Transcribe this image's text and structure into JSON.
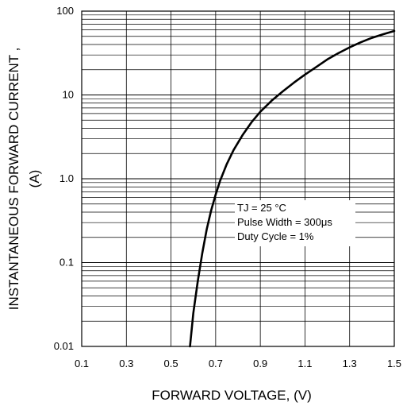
{
  "chart_data": {
    "type": "line",
    "title": "",
    "xlabel": "FORWARD VOLTAGE, (V)",
    "ylabel_lines": [
      "INSTANTANEOUS FORWARD CURRENT ,",
      "(A)"
    ],
    "xlim": [
      0.1,
      1.5
    ],
    "ylim": [
      0.01,
      100
    ],
    "y_scale": "log",
    "grid": true,
    "x_ticks": [
      {
        "value": 0.1,
        "label": "0.1"
      },
      {
        "value": 0.3,
        "label": "0.3"
      },
      {
        "value": 0.5,
        "label": "0.5"
      },
      {
        "value": 0.7,
        "label": "0.7"
      },
      {
        "value": 0.9,
        "label": "0.9"
      },
      {
        "value": 1.1,
        "label": "1.1"
      },
      {
        "value": 1.3,
        "label": "1.3"
      },
      {
        "value": 1.5,
        "label": "1.5"
      }
    ],
    "y_ticks": [
      {
        "value": 0.01,
        "label": "0.01"
      },
      {
        "value": 0.1,
        "label": "0.1"
      },
      {
        "value": 1,
        "label": "1.0"
      },
      {
        "value": 10,
        "label": "10"
      },
      {
        "value": 100,
        "label": "100"
      }
    ],
    "series": [
      {
        "x": [
          0.585,
          0.6,
          0.62,
          0.64,
          0.66,
          0.68,
          0.7,
          0.72,
          0.75,
          0.78,
          0.82,
          0.86,
          0.9,
          0.95,
          1.0,
          1.05,
          1.1,
          1.15,
          1.2,
          1.25,
          1.3,
          1.35,
          1.4,
          1.45,
          1.5
        ],
        "y": [
          0.01,
          0.025,
          0.06,
          0.13,
          0.25,
          0.42,
          0.65,
          0.95,
          1.5,
          2.2,
          3.3,
          4.7,
          6.3,
          8.5,
          11.0,
          14.0,
          17.5,
          21.5,
          26.5,
          31.5,
          37.0,
          42.5,
          48.0,
          53.0,
          58.0
        ]
      }
    ],
    "annotation": {
      "lines": [
        "TJ = 25 °C",
        "Pulse Width = 300μs",
        "Duty Cycle = 1%"
      ]
    },
    "colors": {
      "line": "#000000",
      "grid": "#000000",
      "background": "#ffffff"
    }
  }
}
